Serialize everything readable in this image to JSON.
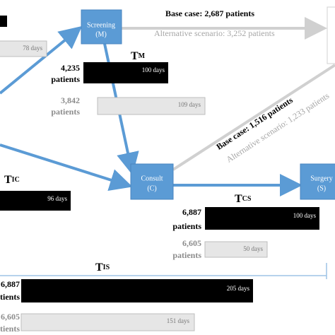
{
  "nodes": [
    {
      "label": "Screening",
      "code": "(M)"
    },
    {
      "label": "Consult",
      "code": "(C)"
    },
    {
      "label": "Surgery",
      "code": "(S)"
    }
  ],
  "flows": [
    {
      "base": "Base case: 2,687 patients",
      "alternative": "Alternative scenario: 3,252 patients"
    },
    {
      "base": "Base case: 1,516 patients",
      "alternative": "Alternative scenario: 1,233 patients"
    }
  ],
  "intervals": [
    {
      "symbol": "T",
      "sub": "M",
      "base_count": "4,235",
      "base_unit": "patients",
      "base_days": "100 days",
      "alt_count": "3,842",
      "alt_unit": "patients",
      "alt_days": "109 days"
    },
    {
      "symbol": "T",
      "sub": "IC",
      "base_days": "96 days",
      "alt_days": "78 days"
    },
    {
      "symbol": "T",
      "sub": "CS",
      "base_count": "6,887",
      "base_unit": "patients",
      "base_days": "100 days",
      "alt_count": "6,605",
      "alt_unit": "patients",
      "alt_days": "50 days"
    },
    {
      "symbol": "T",
      "sub": "IS",
      "base_count": "6,887",
      "base_unit": "patients",
      "base_days": "205 days",
      "alt_count": "6,605",
      "alt_unit": "patients",
      "alt_days": "151 days"
    }
  ]
}
